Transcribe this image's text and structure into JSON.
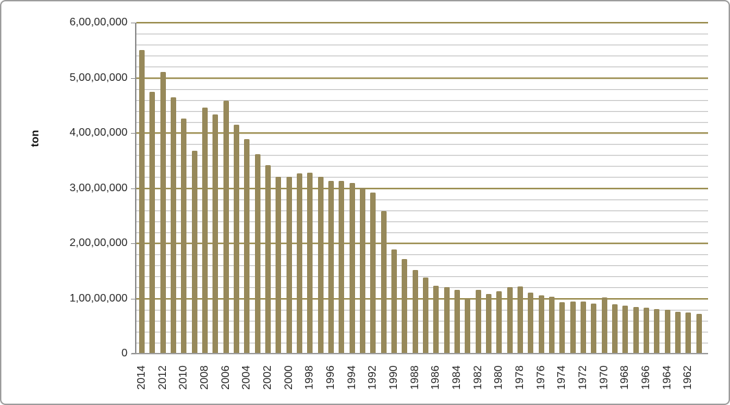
{
  "chart_data": {
    "type": "bar",
    "title": "",
    "xlabel": "",
    "ylabel": "ton",
    "legend": "none",
    "grid": "horizontal major and minor gridlines",
    "ylim": [
      0,
      60000000
    ],
    "y_major_unit": 10000000,
    "y_minor_unit": 2000000,
    "y_tick_labels": [
      "0",
      "1,00,00,000",
      "2,00,00,000",
      "3,00,00,000",
      "4,00,00,000",
      "5,00,00,000",
      "6,00,00,000"
    ],
    "x_tick_labels": [
      "2014",
      "2012",
      "2010",
      "2008",
      "2006",
      "2004",
      "2002",
      "2000",
      "1998",
      "1996",
      "1994",
      "1992",
      "1990",
      "1988",
      "1986",
      "1984",
      "1982",
      "1980",
      "1978",
      "1976",
      "1974",
      "1972",
      "1970",
      "1968",
      "1966",
      "1964",
      "1962"
    ],
    "x": [
      2014,
      2013,
      2012,
      2011,
      2010,
      2009,
      2008,
      2007,
      2006,
      2005,
      2004,
      2003,
      2002,
      2001,
      2000,
      1999,
      1998,
      1997,
      1996,
      1995,
      1994,
      1993,
      1992,
      1991,
      1990,
      1989,
      1988,
      1987,
      1986,
      1985,
      1984,
      1983,
      1982,
      1981,
      1980,
      1979,
      1978,
      1977,
      1976,
      1975,
      1974,
      1973,
      1972,
      1971,
      1970,
      1969,
      1968,
      1967,
      1966,
      1965,
      1964,
      1963,
      1962,
      1961
    ],
    "values": [
      55000000,
      47500000,
      51100000,
      46400000,
      42600000,
      36800000,
      44600000,
      43400000,
      45900000,
      41500000,
      38900000,
      36200000,
      34200000,
      32000000,
      32000000,
      32700000,
      32800000,
      32100000,
      31300000,
      31300000,
      30900000,
      30100000,
      29200000,
      25800000,
      18900000,
      17100000,
      15200000,
      13800000,
      12300000,
      12000000,
      11600000,
      10000000,
      11600000,
      10800000,
      11300000,
      12100000,
      12200000,
      11100000,
      10600000,
      10300000,
      9300000,
      9400000,
      9500000,
      9100000,
      10200000,
      9000000,
      8700000,
      8450000,
      8300000,
      8100000,
      7900000,
      7600000,
      7400000,
      7200000
    ],
    "colors": {
      "bar": "#97895A",
      "major_gridline": "#9c8e51",
      "minor_gridline": "#c3c3c3",
      "axis_line": "#8c8c8c",
      "tick_text": "#262626",
      "window_border": "#9d9d9d",
      "background": "#ffffff"
    }
  }
}
